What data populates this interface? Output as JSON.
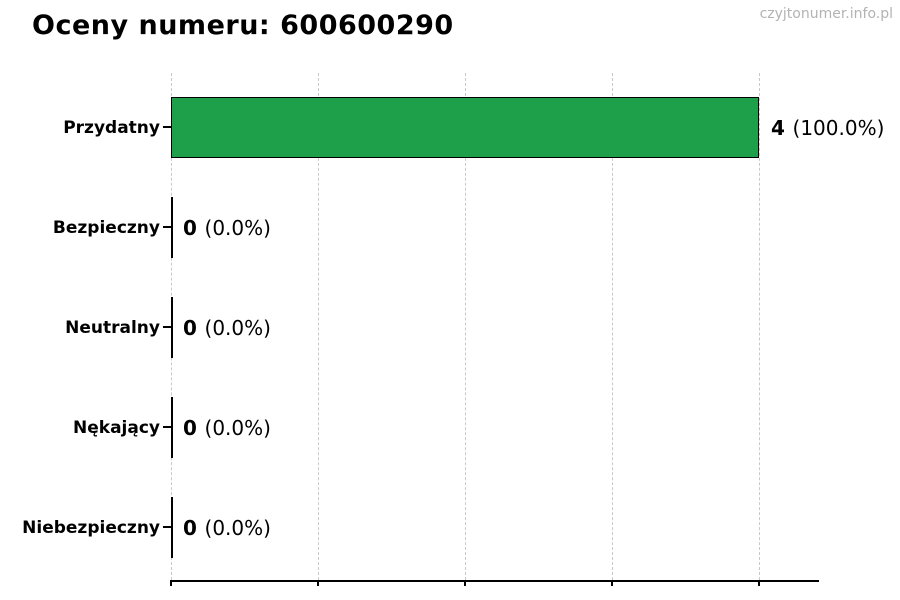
{
  "title": "Oceny numeru: 600600290",
  "watermark": "czyjtonumer.info.pl",
  "colors": {
    "bar_green": "#1ea04b",
    "grid": "#c9c9c9",
    "axis": "#000000",
    "watermark_gray": "#b3b3b3",
    "background": "#ffffff"
  },
  "chart_data": {
    "type": "bar",
    "orientation": "horizontal",
    "title": "Oceny numeru: 600600290",
    "categories": [
      "Przydatny",
      "Bezpieczny",
      "Neutralny",
      "Nękający",
      "Niebezpieczny"
    ],
    "values": [
      4,
      0,
      0,
      0,
      0
    ],
    "percents": [
      100.0,
      0.0,
      0.0,
      0.0,
      0.0
    ],
    "percent_labels": [
      "(100.0%)",
      "(0.0%)",
      "(0.0%)",
      "(0.0%)",
      "(0.0%)"
    ],
    "value_labels": [
      "4 (100.0%)",
      "0 (0.0%)",
      "0 (0.0%)",
      "0 (0.0%)",
      "0 (0.0%)"
    ],
    "xlabel": "",
    "ylabel": "",
    "xlim": [
      0,
      4.4
    ],
    "xticks": [
      0,
      1,
      2,
      3,
      4
    ],
    "xtick_labels_visible": false,
    "grid": "vertical-dashed",
    "legend": "none",
    "bar_color": "#1ea04b",
    "bar_edge_color": "#000000"
  }
}
